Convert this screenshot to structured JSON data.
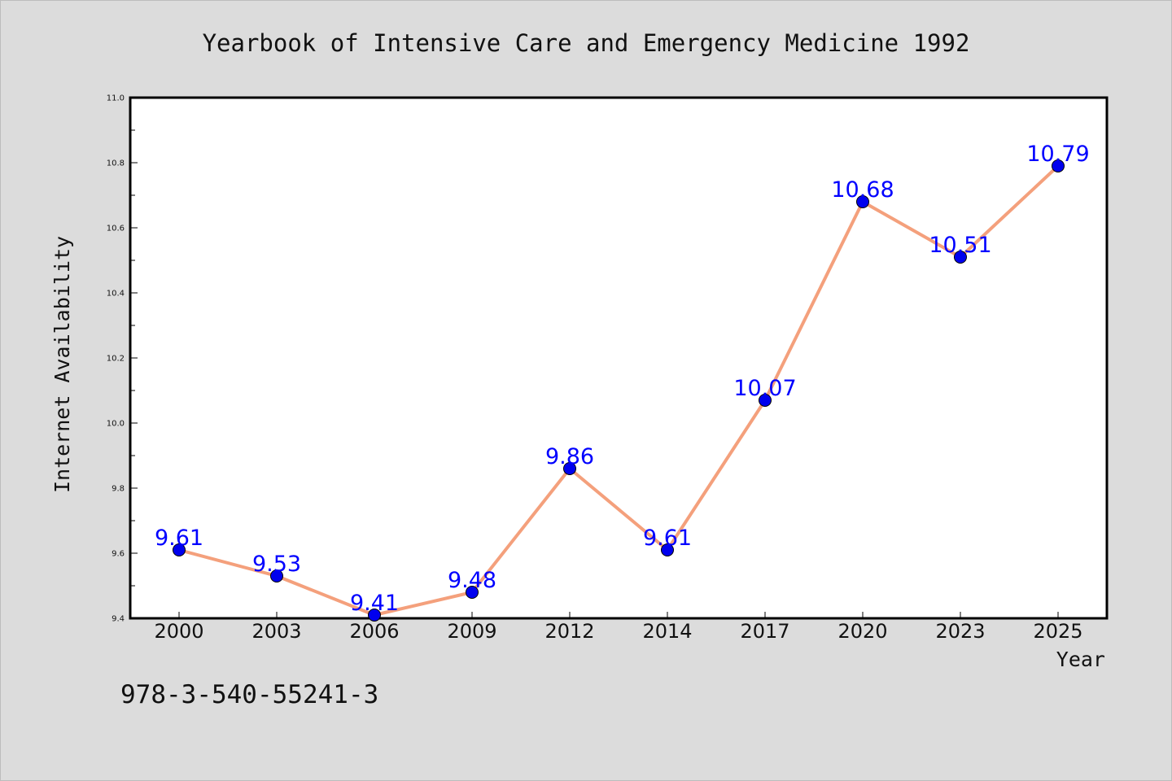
{
  "chart_data": {
    "type": "line",
    "title": "Yearbook of Intensive Care and Emergency Medicine 1992",
    "xlabel": "Year",
    "ylabel": "Internet Availability",
    "categories": [
      "2000",
      "2003",
      "2006",
      "2009",
      "2012",
      "2014",
      "2017",
      "2020",
      "2023",
      "2025"
    ],
    "series": [
      {
        "values": [
          9.61,
          9.53,
          9.41,
          9.48,
          9.86,
          9.61,
          10.07,
          10.68,
          10.51,
          10.79
        ],
        "data_labels": [
          "9.61",
          "9.53",
          "9.41",
          "9.48",
          "9.86",
          "9.61",
          "10.07",
          "10.68",
          "10.51",
          "10.79"
        ],
        "line_color": "#f4a07c",
        "marker_color": "#0000ee"
      }
    ],
    "ylim": [
      9.4,
      11.0
    ],
    "yticks": [
      9.4,
      9.6,
      9.8,
      10.0,
      10.2,
      10.4,
      10.6,
      10.8,
      11.0
    ],
    "ytick_labels": [
      "9.4",
      "9.6",
      "9.8",
      "10.0",
      "10.2",
      "10.4",
      "10.6",
      "10.8",
      "11.0"
    ],
    "yminor_step": 0.1,
    "grid": false,
    "label_color": "#0000ff"
  },
  "footer": {
    "isbn": "978-3-540-55241-3"
  },
  "colors": {
    "background": "#dcdcdc",
    "plot_background": "#ffffff",
    "axes": "#000000"
  }
}
